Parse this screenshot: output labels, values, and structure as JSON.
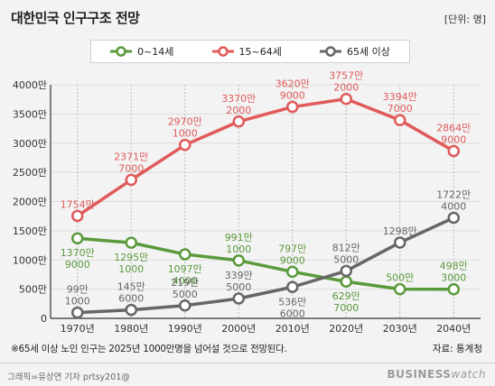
{
  "title": "대한민국 인구구조 전망",
  "unit": "[단위: 명]",
  "colors": {
    "green": "#5a9a3c",
    "red": "#e05a5a",
    "gray": "#666666",
    "axis": "#333333",
    "grid": "#dddddd"
  },
  "legend": [
    {
      "label": "0~14세",
      "color": "#5a9a3c"
    },
    {
      "label": "15~64세",
      "color": "#e05a5a"
    },
    {
      "label": "65세 이상",
      "color": "#666666"
    }
  ],
  "note": "※65세 이상 노인 인구는 2025년 1000만명을 넘어설 것으로 전망된다.",
  "source": "자료: 통계청",
  "credit": "그래픽=유상연 기자 prtsy201@",
  "brand": {
    "bold": "BUSINESS",
    "light": "watch"
  },
  "chart_data": {
    "type": "line",
    "categories": [
      "1970년",
      "1980년",
      "1990년",
      "2000년",
      "2010년",
      "2020년",
      "2030년",
      "2040년"
    ],
    "y_ticks": [
      "0",
      "500만",
      "1000만",
      "1500만",
      "2000만",
      "2500만",
      "3000만",
      "3500만",
      "4000만"
    ],
    "ylim": [
      0,
      40000000
    ],
    "series": [
      {
        "name": "0~14세",
        "color": "#5a9a3c",
        "values": [
          13709000,
          12951000,
          10974000,
          9911000,
          7979000,
          6297000,
          5000000,
          4983000
        ],
        "labels": [
          [
            "1370만",
            "9000"
          ],
          [
            "1295만",
            "1000"
          ],
          [
            "1097만",
            "4000"
          ],
          [
            "991만",
            "1000"
          ],
          [
            "797만",
            "9000"
          ],
          [
            "629만",
            "7000"
          ],
          [
            "500만",
            ""
          ],
          [
            "498만",
            "3000"
          ]
        ]
      },
      {
        "name": "15~64세",
        "color": "#e05a5a",
        "values": [
          17540000,
          23717000,
          29701000,
          33702000,
          36209000,
          37572000,
          33947000,
          28649000
        ],
        "labels": [
          [
            "1754만",
            ""
          ],
          [
            "2371만",
            "7000"
          ],
          [
            "2970만",
            "1000"
          ],
          [
            "3370만",
            "2000"
          ],
          [
            "3620만",
            "9000"
          ],
          [
            "3757만",
            "2000"
          ],
          [
            "3394만",
            "7000"
          ],
          [
            "2864만",
            "9000"
          ]
        ]
      },
      {
        "name": "65세 이상",
        "color": "#666666",
        "values": [
          991000,
          1456000,
          2195000,
          3395000,
          5366000,
          8125000,
          12980000,
          17224000
        ],
        "labels": [
          [
            "99만",
            "1000"
          ],
          [
            "145만",
            "6000"
          ],
          [
            "219만",
            "5000"
          ],
          [
            "339만",
            "5000"
          ],
          [
            "536만",
            "6000"
          ],
          [
            "812만",
            "5000"
          ],
          [
            "1298만",
            ""
          ],
          [
            "1722만",
            "4000"
          ]
        ]
      }
    ]
  }
}
